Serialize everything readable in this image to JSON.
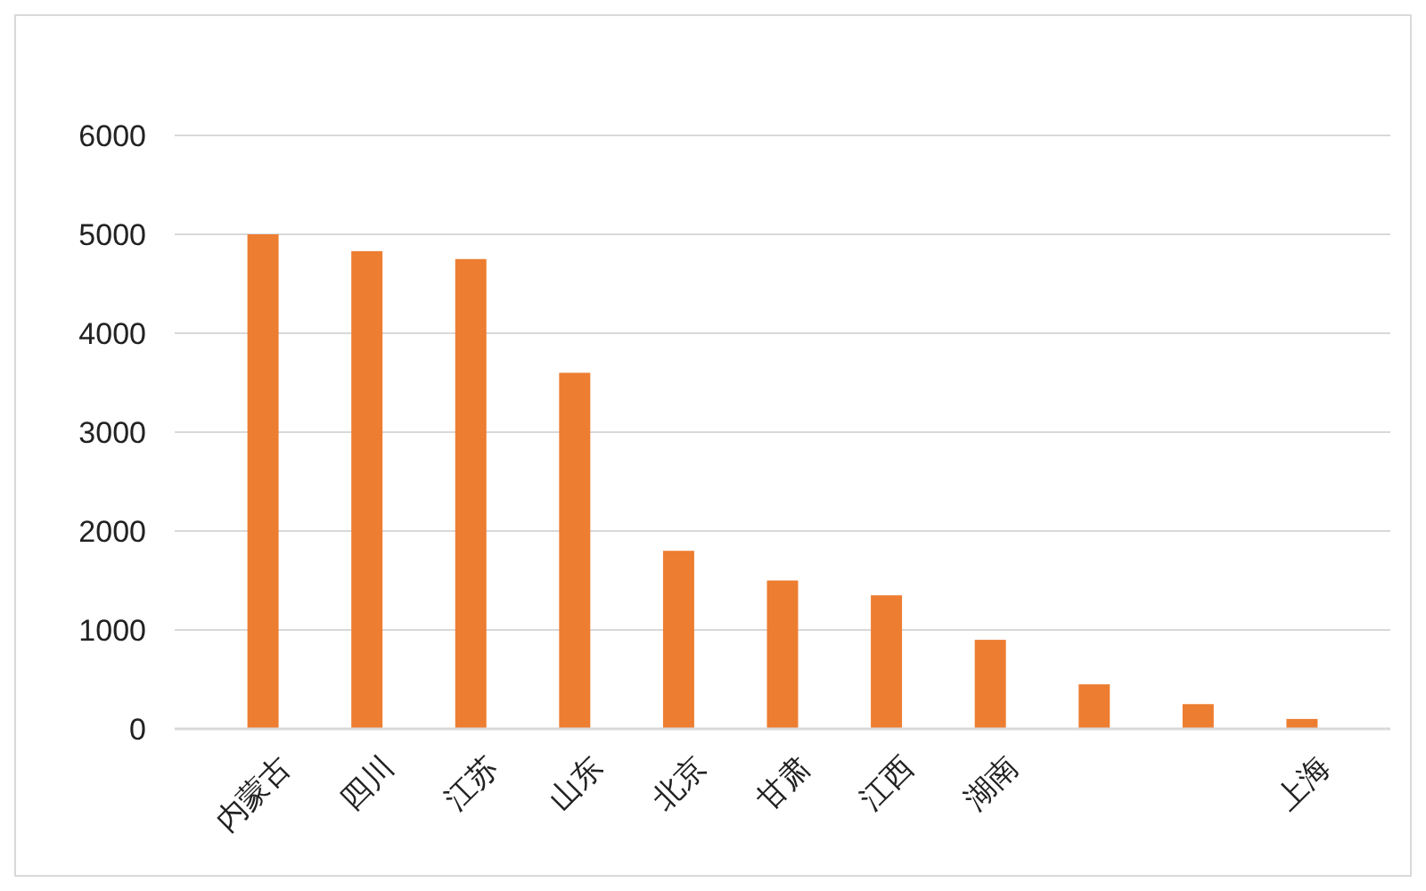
{
  "chart_data": {
    "type": "bar",
    "categories": [
      "内蒙古",
      "四川",
      "江苏",
      "山东",
      "北京",
      "甘肃",
      "江西",
      "湖南",
      null,
      null,
      "上海"
    ],
    "values": [
      5000,
      4830,
      4750,
      3600,
      1800,
      1500,
      1350,
      900,
      450,
      250,
      100
    ],
    "color": "#ed7d31",
    "ylim": [
      0,
      6000
    ],
    "yticks": [
      0,
      1000,
      2000,
      3000,
      4000,
      5000,
      6000
    ],
    "grid": "y"
  }
}
